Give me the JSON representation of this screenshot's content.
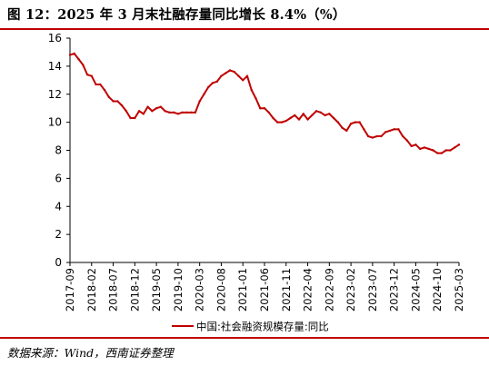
{
  "figure": {
    "title": "图 12：2025 年 3 月末社融存量同比增长 8.4%（%）",
    "source": "数据来源：Wind，西南证券整理"
  },
  "colors": {
    "accent": "#c00000",
    "series": "#c00000",
    "axis": "#000000"
  },
  "chart_data": {
    "type": "line",
    "title": "",
    "xlabel": "",
    "ylabel": "",
    "ylim": [
      0,
      16
    ],
    "yticks": [
      "0",
      "2",
      "4",
      "6",
      "8",
      "10",
      "12",
      "14",
      "16"
    ],
    "xtick_labels": [
      "2017-09",
      "2018-02",
      "2018-07",
      "2018-12",
      "2019-05",
      "2019-10",
      "2020-03",
      "2020-08",
      "2021-01",
      "2021-06",
      "2021-11",
      "2022-04",
      "2022-09",
      "2023-02",
      "2023-07",
      "2023-12",
      "2024-05",
      "2024-10",
      "2025-03"
    ],
    "grid": false,
    "legend_position": "bottom-center",
    "series": [
      {
        "name": "中国:社会融资规模存量:同比",
        "color": "#c00000",
        "x": [
          "2017-09",
          "2017-10",
          "2017-11",
          "2017-12",
          "2018-01",
          "2018-02",
          "2018-03",
          "2018-04",
          "2018-05",
          "2018-06",
          "2018-07",
          "2018-08",
          "2018-09",
          "2018-10",
          "2018-11",
          "2018-12",
          "2019-01",
          "2019-02",
          "2019-03",
          "2019-04",
          "2019-05",
          "2019-06",
          "2019-07",
          "2019-08",
          "2019-09",
          "2019-10",
          "2019-11",
          "2019-12",
          "2020-01",
          "2020-02",
          "2020-03",
          "2020-04",
          "2020-05",
          "2020-06",
          "2020-07",
          "2020-08",
          "2020-09",
          "2020-10",
          "2020-11",
          "2020-12",
          "2021-01",
          "2021-02",
          "2021-03",
          "2021-04",
          "2021-05",
          "2021-06",
          "2021-07",
          "2021-08",
          "2021-09",
          "2021-10",
          "2021-11",
          "2021-12",
          "2022-01",
          "2022-02",
          "2022-03",
          "2022-04",
          "2022-05",
          "2022-06",
          "2022-07",
          "2022-08",
          "2022-09",
          "2022-10",
          "2022-11",
          "2022-12",
          "2023-01",
          "2023-02",
          "2023-03",
          "2023-04",
          "2023-05",
          "2023-06",
          "2023-07",
          "2023-08",
          "2023-09",
          "2023-10",
          "2023-11",
          "2023-12",
          "2024-01",
          "2024-02",
          "2024-03",
          "2024-04",
          "2024-05",
          "2024-06",
          "2024-07",
          "2024-08",
          "2024-09",
          "2024-10",
          "2024-11",
          "2024-12",
          "2025-01",
          "2025-02",
          "2025-03"
        ],
        "values": [
          14.8,
          14.9,
          14.5,
          14.1,
          13.4,
          13.3,
          12.7,
          12.7,
          12.3,
          11.8,
          11.5,
          11.5,
          11.2,
          10.8,
          10.3,
          10.3,
          10.8,
          10.6,
          11.1,
          10.8,
          11.0,
          11.1,
          10.8,
          10.7,
          10.7,
          10.6,
          10.7,
          10.7,
          10.7,
          10.7,
          11.5,
          12.0,
          12.5,
          12.8,
          12.9,
          13.3,
          13.5,
          13.7,
          13.6,
          13.3,
          13.0,
          13.3,
          12.3,
          11.7,
          11.0,
          11.0,
          10.7,
          10.3,
          10.0,
          10.0,
          10.1,
          10.3,
          10.5,
          10.2,
          10.6,
          10.2,
          10.5,
          10.8,
          10.7,
          10.5,
          10.6,
          10.3,
          10.0,
          9.6,
          9.4,
          9.9,
          10.0,
          10.0,
          9.5,
          9.0,
          8.9,
          9.0,
          9.0,
          9.3,
          9.4,
          9.5,
          9.5,
          9.0,
          8.7,
          8.3,
          8.4,
          8.1,
          8.2,
          8.1,
          8.0,
          7.8,
          7.8,
          8.0,
          8.0,
          8.2,
          8.4
        ]
      }
    ]
  }
}
